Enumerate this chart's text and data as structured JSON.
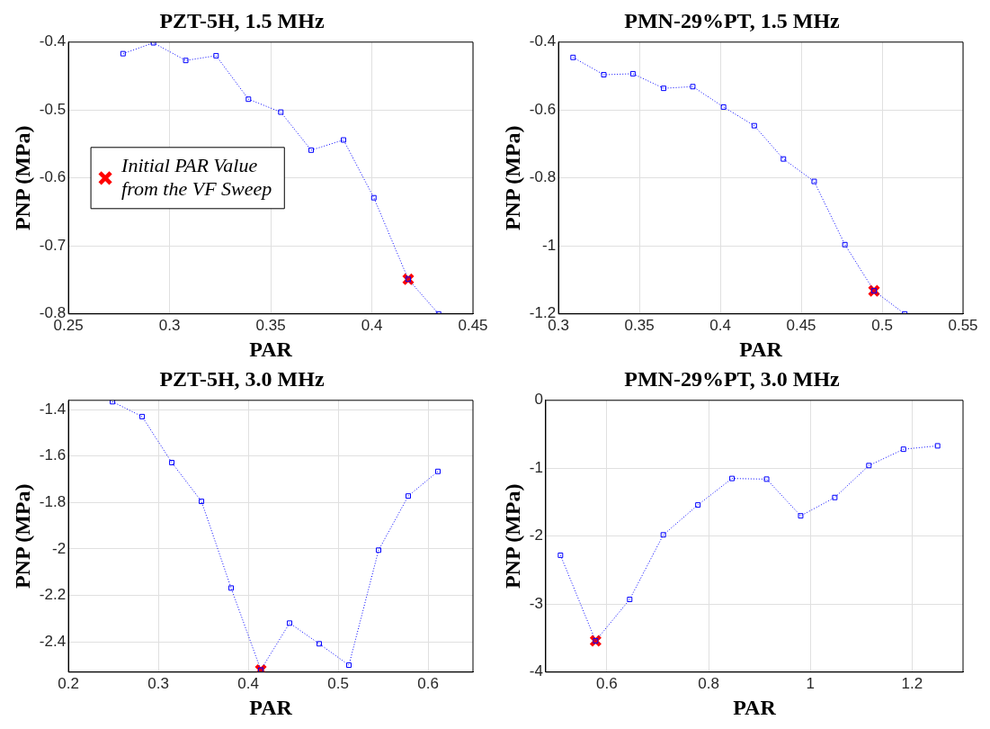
{
  "chart_data": [
    {
      "type": "line",
      "title": "PZT-5H, 1.5 MHz",
      "xlabel": "PAR",
      "ylabel": "PNP (MPa)",
      "xlim": [
        0.25,
        0.45
      ],
      "xticks": [
        0.25,
        0.3,
        0.35,
        0.4,
        0.45
      ],
      "ylim": [
        -0.8,
        -0.4
      ],
      "yticks": [
        -0.8,
        -0.7,
        -0.6,
        -0.5,
        -0.4
      ],
      "grid": true,
      "legend": "left",
      "series": [
        {
          "color": "#0000ff",
          "marker": "square",
          "line_style": "dotted",
          "x": [
            0.277,
            0.292,
            0.308,
            0.323,
            0.339,
            0.355,
            0.37,
            0.386,
            0.401,
            0.418,
            0.433
          ],
          "values": [
            -0.417,
            -0.401,
            -0.427,
            -0.42,
            -0.484,
            -0.503,
            -0.559,
            -0.544,
            -0.629,
            -0.749,
            -0.8
          ]
        },
        {
          "name": "Initial PAR Value from the VF Sweep",
          "type": "scatter",
          "color": "#ff0000",
          "marker": "cross",
          "x": [
            0.418
          ],
          "values": [
            -0.749
          ]
        }
      ]
    },
    {
      "type": "line",
      "title": "PMN-29%PT, 1.5 MHz",
      "xlabel": "PAR",
      "ylabel": "PNP (MPa)",
      "xlim": [
        0.3,
        0.55
      ],
      "xticks": [
        0.3,
        0.35,
        0.4,
        0.45,
        0.5,
        0.55
      ],
      "ylim": [
        -1.2,
        -0.4
      ],
      "yticks": [
        -1.2,
        -1,
        -0.8,
        -0.6,
        -0.4
      ],
      "grid": true,
      "series": [
        {
          "color": "#0000ff",
          "marker": "square",
          "line_style": "dotted",
          "x": [
            0.309,
            0.328,
            0.346,
            0.365,
            0.383,
            0.402,
            0.421,
            0.439,
            0.458,
            0.477,
            0.495,
            0.514
          ],
          "values": [
            -0.445,
            -0.496,
            -0.493,
            -0.536,
            -0.531,
            -0.591,
            -0.646,
            -0.744,
            -0.81,
            -0.996,
            -1.132,
            -1.2
          ]
        },
        {
          "type": "scatter",
          "color": "#ff0000",
          "marker": "cross",
          "x": [
            0.495
          ],
          "values": [
            -1.132
          ]
        }
      ]
    },
    {
      "type": "line",
      "title": "PZT-5H, 3.0 MHz",
      "xlabel": "PAR",
      "ylabel": "PNP (MPa)",
      "xlim": [
        0.2,
        0.65
      ],
      "xticks": [
        0.2,
        0.3,
        0.4,
        0.5,
        0.6
      ],
      "ylim": [
        -2.53,
        -1.36
      ],
      "yticks": [
        -2.4,
        -2.2,
        -2,
        -1.8,
        -1.6,
        -1.4
      ],
      "grid": true,
      "series": [
        {
          "color": "#0000ff",
          "marker": "square",
          "line_style": "dotted",
          "x": [
            0.249,
            0.282,
            0.315,
            0.348,
            0.381,
            0.414,
            0.446,
            0.479,
            0.512,
            0.545,
            0.578,
            0.611
          ],
          "values": [
            -1.366,
            -1.43,
            -1.628,
            -1.795,
            -2.168,
            -2.521,
            -2.319,
            -2.408,
            -2.5,
            -2.005,
            -1.772,
            -1.666
          ]
        },
        {
          "type": "scatter",
          "color": "#ff0000",
          "marker": "cross",
          "x": [
            0.414
          ],
          "values": [
            -2.521
          ]
        }
      ]
    },
    {
      "type": "line",
      "title": "PMN-29%PT, 3.0 MHz",
      "xlabel": "PAR",
      "ylabel": "PNP (MPa)",
      "xlim": [
        0.48,
        1.3
      ],
      "xticks": [
        0.6,
        0.8,
        1,
        1.2
      ],
      "ylim": [
        -4,
        0
      ],
      "yticks": [
        -4,
        -3,
        -2,
        -1,
        0
      ],
      "grid": true,
      "series": [
        {
          "color": "#0000ff",
          "marker": "square",
          "line_style": "dotted",
          "x": [
            0.509,
            0.578,
            0.645,
            0.711,
            0.779,
            0.846,
            0.914,
            0.981,
            1.048,
            1.115,
            1.183,
            1.25
          ],
          "values": [
            -2.28,
            -3.54,
            -2.93,
            -1.98,
            -1.54,
            -1.15,
            -1.16,
            -1.7,
            -1.43,
            -0.96,
            -0.72,
            -0.67
          ]
        },
        {
          "type": "scatter",
          "color": "#ff0000",
          "marker": "cross",
          "x": [
            0.578
          ],
          "values": [
            -3.54
          ]
        }
      ]
    }
  ]
}
